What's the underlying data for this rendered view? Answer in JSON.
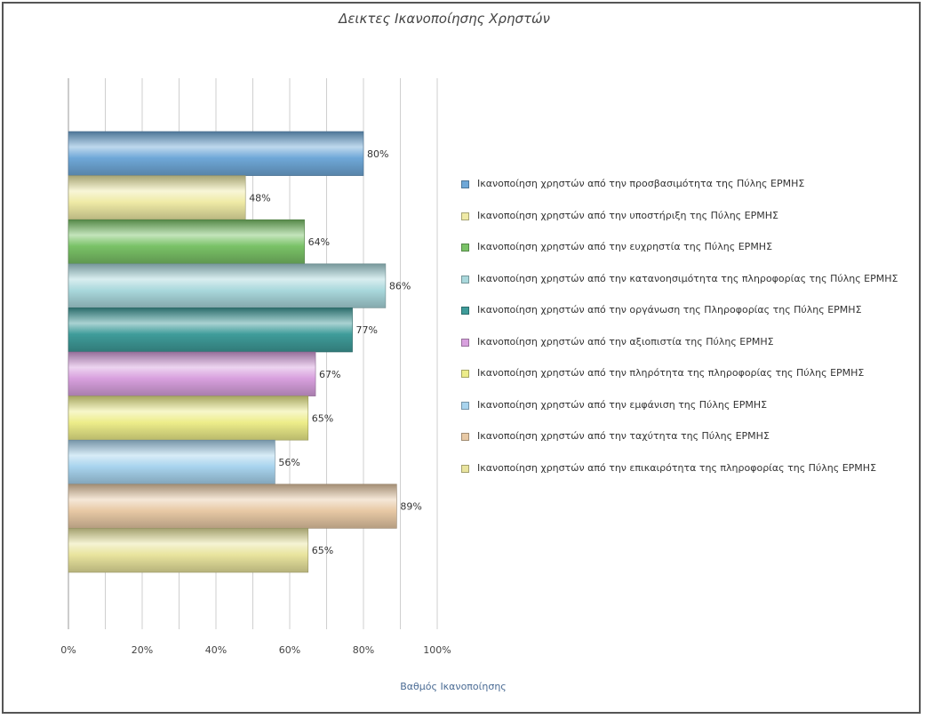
{
  "chart_data": {
    "type": "bar",
    "orientation": "horizontal",
    "title": "Δεικτες Ικανοποίησης Χρηστών",
    "xlabel": "Βαθμός Ικανοποίησης",
    "ylabel": "",
    "xlim": [
      0,
      100
    ],
    "x_ticks": [
      "0%",
      "20%",
      "40%",
      "60%",
      "80%",
      "100%"
    ],
    "grid": true,
    "legend_position": "right",
    "series": [
      {
        "name": "Ικανοποίηση χρηστών από την προσβασιμότητα της Πύλης ΕΡΜΗΣ",
        "value": 80,
        "label": "80%",
        "color": "#6fa8d8"
      },
      {
        "name": "Ικανοποίηση χρηστών από την υποστήριξη της Πύλης ΕΡΜΗΣ",
        "value": 48,
        "label": "48%",
        "color": "#efeaa6"
      },
      {
        "name": "Ικανοποίηση χρηστών από την ευχρηστία της Πύλης ΕΡΜΗΣ",
        "value": 64,
        "label": "64%",
        "color": "#7ac267"
      },
      {
        "name": "Ικανοποίηση χρηστών από την κατανοησιμότητα της πληροφορίας της Πύλης ΕΡΜΗΣ",
        "value": 86,
        "label": "86%",
        "color": "#a9d8dc"
      },
      {
        "name": "Ικανοποίηση χρηστών από την οργάνωση της Πληροφορίας της Πύλης ΕΡΜΗΣ",
        "value": 77,
        "label": "77%",
        "color": "#3f9c9a"
      },
      {
        "name": "Ικανοποίηση χρηστών από την αξιοπιστία της Πύλης ΕΡΜΗΣ",
        "value": 67,
        "label": "67%",
        "color": "#d8a0de"
      },
      {
        "name": "Ικανοποίηση χρηστών από την πληρότητα της πληροφορίας της Πύλης ΕΡΜΗΣ",
        "value": 65,
        "label": "65%",
        "color": "#eded8a"
      },
      {
        "name": "Ικανοποίηση χρηστών από την εμφάνιση της Πύλης ΕΡΜΗΣ",
        "value": 56,
        "label": "56%",
        "color": "#a8d4ee"
      },
      {
        "name": "Ικανοποίηση χρηστών από την ταχύτητα της Πύλης ΕΡΜΗΣ",
        "value": 89,
        "label": "89%",
        "color": "#e8c9a5"
      },
      {
        "name": "Ικανοποίηση χρηστών από την επικαιρότητα της πληροφορίας της Πύλης ΕΡΜΗΣ",
        "value": 65,
        "label": "65%",
        "color": "#e9e49e"
      }
    ]
  }
}
